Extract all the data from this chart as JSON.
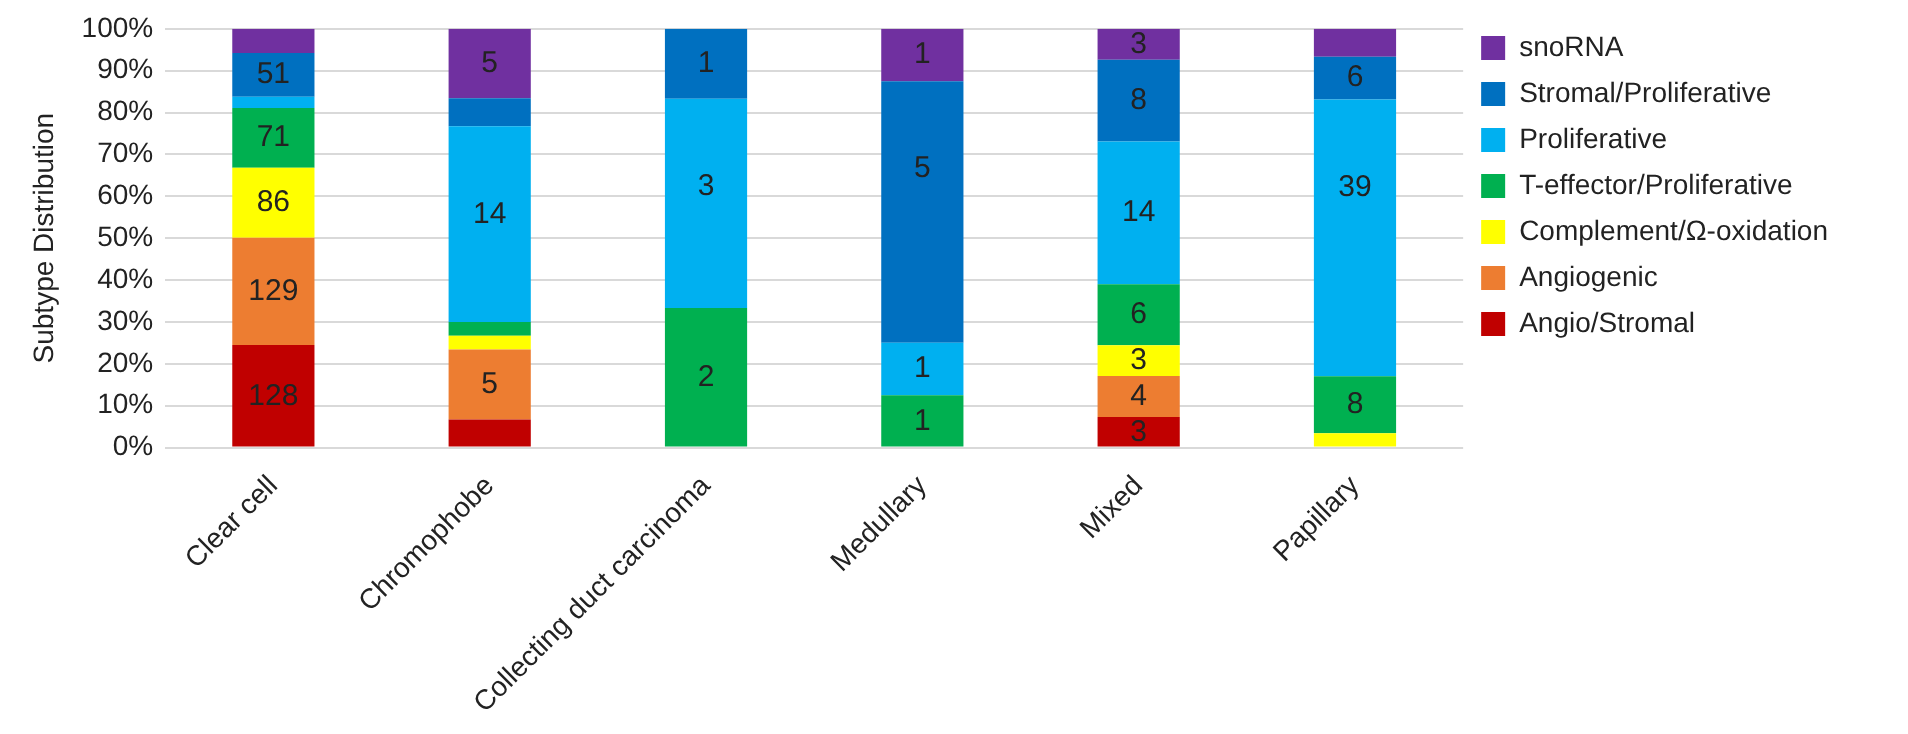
{
  "chart_data": {
    "type": "bar",
    "stacked": true,
    "ylabel": "Subtype Distribution",
    "categories": [
      "Clear cell",
      "Chromophobe",
      "Collecting duct carcinoma",
      "Medullary",
      "Mixed",
      "Papillary"
    ],
    "series": [
      {
        "name": "Angio/Stromal",
        "color": "#c00000",
        "values": [
          24.5,
          6.7,
          0,
          0,
          7.3,
          0
        ]
      },
      {
        "name": "Angiogenic",
        "color": "#ed7d31",
        "values": [
          25.6,
          16.7,
          0,
          0,
          9.8,
          0
        ]
      },
      {
        "name": "Complement/Ω-oxidation",
        "color": "#ffff00",
        "values": [
          16.7,
          3.3,
          0,
          0,
          7.3,
          3.4
        ]
      },
      {
        "name": "T-effector/Proliferative",
        "color": "#00b050",
        "values": [
          14.3,
          3.3,
          33.3,
          12.5,
          14.6,
          13.6
        ]
      },
      {
        "name": "Proliferative",
        "color": "#00b0f0",
        "values": [
          2.7,
          46.7,
          50,
          12.5,
          34.1,
          66.1
        ]
      },
      {
        "name": "Stromal/Proliferative",
        "color": "#0070c0",
        "values": [
          10.4,
          6.7,
          16.7,
          62.5,
          19.5,
          10.2
        ]
      },
      {
        "name": "snoRNA",
        "color": "#7030a0",
        "values": [
          5.8,
          16.6,
          0,
          12.5,
          7.4,
          6.7
        ]
      }
    ],
    "annotations": [
      {
        "text": "128",
        "x": "Clear cell",
        "y": 24.5
      },
      {
        "text": "129",
        "x": "Clear cell",
        "y": 50.1
      },
      {
        "text": "86",
        "x": "Clear cell",
        "y": 66.8
      },
      {
        "text": "71",
        "x": "Clear cell",
        "y": 81.1
      },
      {
        "text": "51",
        "x": "Clear cell",
        "y": 94.2
      },
      {
        "text": "5",
        "x": "Chromophobe",
        "y": 23.4
      },
      {
        "text": "14",
        "x": "Chromophobe",
        "y": 76.7
      },
      {
        "text": "5",
        "x": "Chromophobe",
        "y": 100
      },
      {
        "text": "2",
        "x": "Collecting duct carcinoma",
        "y": 33.3
      },
      {
        "text": "3",
        "x": "Collecting duct carcinoma",
        "y": 83.3
      },
      {
        "text": "1",
        "x": "Collecting duct carcinoma",
        "y": 100
      },
      {
        "text": "1",
        "x": "Medullary",
        "y": 12.5
      },
      {
        "text": "1",
        "x": "Medullary",
        "y": 25
      },
      {
        "text": "5",
        "x": "Medullary",
        "y": 87.5
      },
      {
        "text": "1",
        "x": "Medullary",
        "y": 100
      },
      {
        "text": "3",
        "x": "Mixed",
        "y": 7.3
      },
      {
        "text": "4",
        "x": "Mixed",
        "y": 17.1
      },
      {
        "text": "3",
        "x": "Mixed",
        "y": 24.4
      },
      {
        "text": "6",
        "x": "Mixed",
        "y": 39
      },
      {
        "text": "14",
        "x": "Mixed",
        "y": 73.1
      },
      {
        "text": "8",
        "x": "Mixed",
        "y": 92.6
      },
      {
        "text": "3",
        "x": "Mixed",
        "y": 100
      },
      {
        "text": "8",
        "x": "Papillary",
        "y": 17
      },
      {
        "text": "39",
        "x": "Papillary",
        "y": 83.1
      },
      {
        "text": "6",
        "x": "Papillary",
        "y": 93.3
      }
    ],
    "ylim": [
      0,
      100
    ],
    "yticks": [
      {
        "value": 0,
        "label": "0%"
      },
      {
        "value": 10,
        "label": "10%"
      },
      {
        "value": 20,
        "label": "20%"
      },
      {
        "value": 30,
        "label": "30%"
      },
      {
        "value": 40,
        "label": "40%"
      },
      {
        "value": 50,
        "label": "50%"
      },
      {
        "value": 60,
        "label": "60%"
      },
      {
        "value": 70,
        "label": "70%"
      },
      {
        "value": 80,
        "label": "80%"
      },
      {
        "value": 90,
        "label": "90%"
      },
      {
        "value": 100,
        "label": "100%"
      }
    ],
    "grid": "y",
    "legend": "right"
  }
}
